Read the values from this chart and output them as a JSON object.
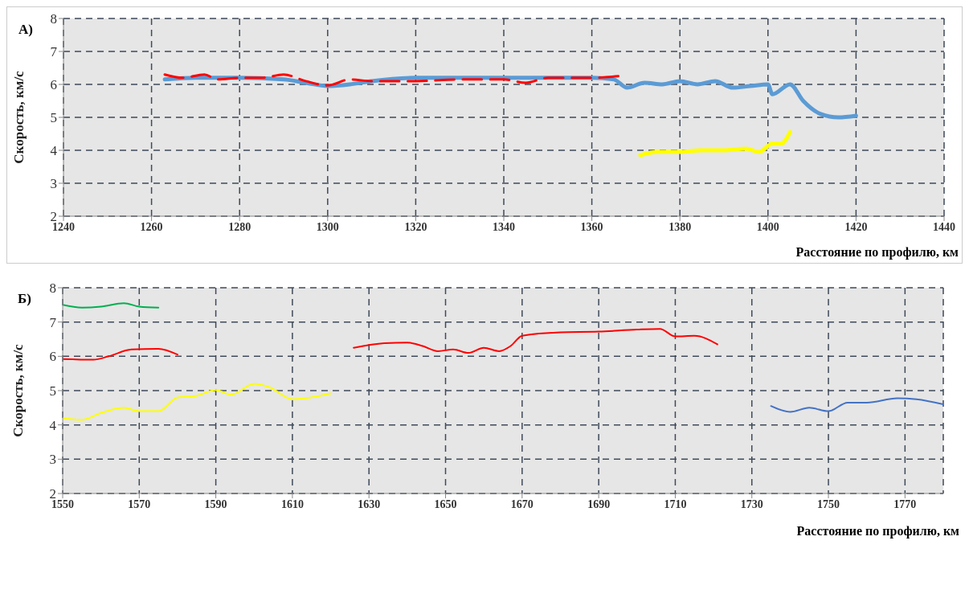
{
  "chart_data": [
    {
      "type": "line",
      "title": "А)",
      "xlabel": "Расстояние по профилю, км",
      "ylabel": "Скорость, км/с",
      "xlim": [
        1240,
        1440
      ],
      "xticks": [
        1240,
        1260,
        1280,
        1300,
        1320,
        1340,
        1360,
        1380,
        1400,
        1420,
        1440
      ],
      "ylim": [
        2,
        8
      ],
      "yticks": [
        2,
        3,
        4,
        5,
        6,
        7,
        8
      ],
      "grid": true,
      "marker": "none",
      "series": [
        {
          "color": "#5b9bd5",
          "line_style": "solid",
          "x": [
            1263,
            1270,
            1280,
            1290,
            1295,
            1300,
            1305,
            1310,
            1320,
            1330,
            1340,
            1350,
            1360,
            1365,
            1368,
            1372,
            1376,
            1380,
            1384,
            1388,
            1392,
            1396,
            1400,
            1401,
            1405,
            1408,
            1412,
            1416,
            1420
          ],
          "values": [
            6.15,
            6.2,
            6.2,
            6.15,
            6.05,
            5.95,
            6.0,
            6.1,
            6.2,
            6.2,
            6.2,
            6.2,
            6.2,
            6.15,
            5.9,
            6.05,
            6.0,
            6.1,
            6.0,
            6.1,
            5.9,
            5.95,
            6.0,
            5.7,
            6.0,
            5.5,
            5.1,
            5.0,
            5.05
          ]
        },
        {
          "color": "#ff0000",
          "line_style": "dashed",
          "x": [
            1263,
            1267,
            1272,
            1275,
            1280,
            1285,
            1290,
            1295,
            1300,
            1305,
            1310,
            1320,
            1330,
            1340,
            1345,
            1350,
            1360,
            1366
          ],
          "values": [
            6.3,
            6.2,
            6.3,
            6.15,
            6.2,
            6.2,
            6.3,
            6.1,
            5.97,
            6.15,
            6.1,
            6.1,
            6.15,
            6.15,
            6.05,
            6.2,
            6.2,
            6.25
          ]
        },
        {
          "color": "#ffff00",
          "line_style": "solid",
          "x": [
            1371,
            1375,
            1380,
            1385,
            1390,
            1395,
            1398,
            1401,
            1403,
            1405
          ],
          "values": [
            3.85,
            3.95,
            3.95,
            4.0,
            4.0,
            4.05,
            3.95,
            4.2,
            4.2,
            4.55
          ]
        }
      ]
    },
    {
      "type": "line",
      "title": "Б)",
      "xlabel": "Расстояние по профилю, км",
      "ylabel": "Скорость, км/с",
      "xlim": [
        1550,
        1780
      ],
      "xticks": [
        1550,
        1570,
        1590,
        1610,
        1630,
        1650,
        1670,
        1690,
        1710,
        1730,
        1750,
        1770
      ],
      "ylim": [
        2,
        8
      ],
      "yticks": [
        2,
        3,
        4,
        5,
        6,
        7,
        8
      ],
      "grid": true,
      "marker": "none",
      "series": [
        {
          "color": "#00b050",
          "line_style": "solid",
          "x": [
            1550,
            1555,
            1560,
            1566,
            1570,
            1575
          ],
          "values": [
            7.5,
            7.42,
            7.45,
            7.55,
            7.45,
            7.42
          ]
        },
        {
          "color": "#ff0000",
          "line_style": "solid",
          "x": [
            1550,
            1558,
            1562,
            1568,
            1575,
            1580
          ],
          "values": [
            5.92,
            5.9,
            6.0,
            6.2,
            6.22,
            6.05
          ]
        },
        {
          "color": "#ffff00",
          "line_style": "solid",
          "x": [
            1550,
            1555,
            1560,
            1566,
            1570,
            1575,
            1580,
            1585,
            1590,
            1594,
            1600,
            1604,
            1610,
            1620
          ],
          "values": [
            4.2,
            4.15,
            4.35,
            4.5,
            4.4,
            4.4,
            4.8,
            4.85,
            5.02,
            4.88,
            5.2,
            5.1,
            4.75,
            4.92
          ]
        },
        {
          "color": "#ff0000",
          "line_style": "solid",
          "x": [
            1626,
            1634,
            1640,
            1644,
            1648,
            1652,
            1656,
            1660,
            1664,
            1667,
            1670,
            1680,
            1690,
            1700,
            1706,
            1710,
            1715,
            1721
          ],
          "values": [
            6.25,
            6.38,
            6.4,
            6.3,
            6.15,
            6.2,
            6.1,
            6.25,
            6.15,
            6.3,
            6.6,
            6.7,
            6.72,
            6.78,
            6.8,
            6.58,
            6.6,
            6.35
          ]
        },
        {
          "color": "#4472c4",
          "line_style": "solid",
          "x": [
            1735,
            1740,
            1745,
            1750,
            1755,
            1760,
            1768,
            1773,
            1780
          ],
          "values": [
            4.55,
            4.38,
            4.5,
            4.4,
            4.65,
            4.65,
            4.78,
            4.75,
            4.6
          ]
        }
      ]
    }
  ]
}
